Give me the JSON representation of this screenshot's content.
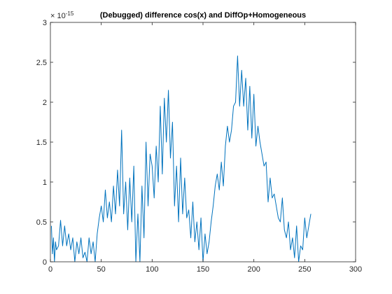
{
  "chart_data": {
    "type": "line",
    "title": "(Debugged) difference cos(x) and DiffOp+Homogeneous",
    "xlabel": "",
    "ylabel": "",
    "xlim": [
      0,
      300
    ],
    "ylim": [
      0,
      3
    ],
    "x_ticks": [
      0,
      50,
      100,
      150,
      200,
      250,
      300
    ],
    "y_ticks": [
      0,
      0.5,
      1,
      1.5,
      2,
      2.5,
      3
    ],
    "x_tick_labels": [
      "0",
      "50",
      "100",
      "150",
      "200",
      "250",
      "300"
    ],
    "y_tick_labels": [
      "0",
      "0.5",
      "1",
      "1.5",
      "2",
      "2.5",
      "3"
    ],
    "y_exponent_base": "× 10",
    "y_exponent_power": "-15",
    "grid": false,
    "series": [
      {
        "color": "#0072BD",
        "x": [
          1,
          2,
          3,
          4,
          5,
          6,
          8,
          10,
          12,
          14,
          16,
          18,
          20,
          22,
          24,
          26,
          28,
          30,
          32,
          34,
          36,
          38,
          40,
          42,
          44,
          46,
          48,
          50,
          52,
          54,
          56,
          58,
          60,
          62,
          64,
          66,
          68,
          70,
          72,
          74,
          76,
          78,
          80,
          82,
          84,
          86,
          88,
          90,
          92,
          94,
          96,
          98,
          100,
          102,
          104,
          106,
          108,
          110,
          112,
          114,
          116,
          118,
          120,
          122,
          124,
          126,
          128,
          130,
          132,
          134,
          136,
          138,
          140,
          142,
          144,
          146,
          148,
          150,
          152,
          154,
          156,
          158,
          160,
          162,
          164,
          166,
          168,
          170,
          172,
          174,
          176,
          178,
          180,
          182,
          184,
          186,
          188,
          190,
          192,
          194,
          196,
          198,
          200,
          202,
          204,
          206,
          208,
          210,
          212,
          214,
          216,
          218,
          220,
          222,
          224,
          226,
          228,
          230,
          232,
          234,
          236,
          238,
          240,
          242,
          244,
          246,
          248,
          250,
          252,
          254,
          256
        ],
        "y": [
          0.45,
          0.1,
          0.3,
          0.0,
          0.25,
          0.15,
          0.2,
          0.52,
          0.2,
          0.45,
          0.2,
          0.35,
          0.15,
          0.3,
          0.0,
          0.25,
          0.1,
          0.3,
          0.05,
          0.12,
          0.0,
          0.3,
          0.1,
          0.25,
          0.0,
          0.35,
          0.55,
          0.7,
          0.5,
          0.9,
          0.55,
          0.75,
          0.5,
          0.95,
          0.6,
          1.15,
          0.7,
          1.65,
          0.6,
          1.0,
          0.4,
          1.05,
          0.5,
          1.2,
          0.0,
          0.6,
          0.0,
          0.95,
          0.3,
          1.5,
          0.7,
          1.35,
          1.2,
          0.8,
          1.45,
          1.0,
          1.95,
          1.1,
          2.05,
          1.5,
          2.15,
          1.3,
          1.75,
          0.7,
          1.2,
          0.5,
          1.3,
          0.6,
          1.05,
          0.55,
          0.65,
          0.3,
          0.75,
          0.25,
          0.5,
          0.15,
          0.55,
          0.0,
          0.35,
          0.1,
          0.25,
          0.5,
          0.7,
          0.95,
          1.1,
          0.9,
          1.25,
          0.95,
          1.45,
          1.7,
          1.5,
          1.65,
          1.95,
          2.0,
          2.58,
          1.95,
          2.4,
          1.95,
          2.3,
          1.65,
          2.2,
          1.55,
          2.1,
          1.45,
          1.7,
          1.5,
          1.35,
          1.2,
          1.25,
          0.75,
          1.05,
          0.8,
          0.85,
          0.7,
          0.55,
          0.5,
          0.8,
          0.4,
          0.3,
          0.5,
          0.15,
          0.3,
          0.05,
          0.45,
          0.0,
          0.2,
          0.15,
          0.55,
          0.3,
          0.45,
          0.6
        ]
      }
    ]
  }
}
